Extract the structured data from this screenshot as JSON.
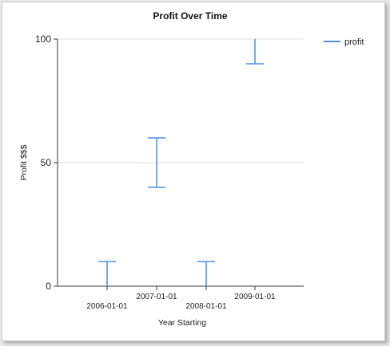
{
  "chart_data": {
    "type": "errorbar",
    "title": "Profit Over Time",
    "xlabel": "Year Starting",
    "ylabel": "Profit $$$",
    "x": [
      "2006-01-01",
      "2007-01-01",
      "2008-01-01",
      "2009-01-01"
    ],
    "series": [
      {
        "name": "profit",
        "color": "#4a8fe0",
        "low": [
          0,
          40,
          0,
          90
        ],
        "high": [
          10,
          60,
          10,
          100
        ]
      }
    ],
    "ylim": [
      0,
      100
    ],
    "yticks": [
      0,
      50,
      100
    ],
    "grid": true,
    "legend": "top-right"
  }
}
